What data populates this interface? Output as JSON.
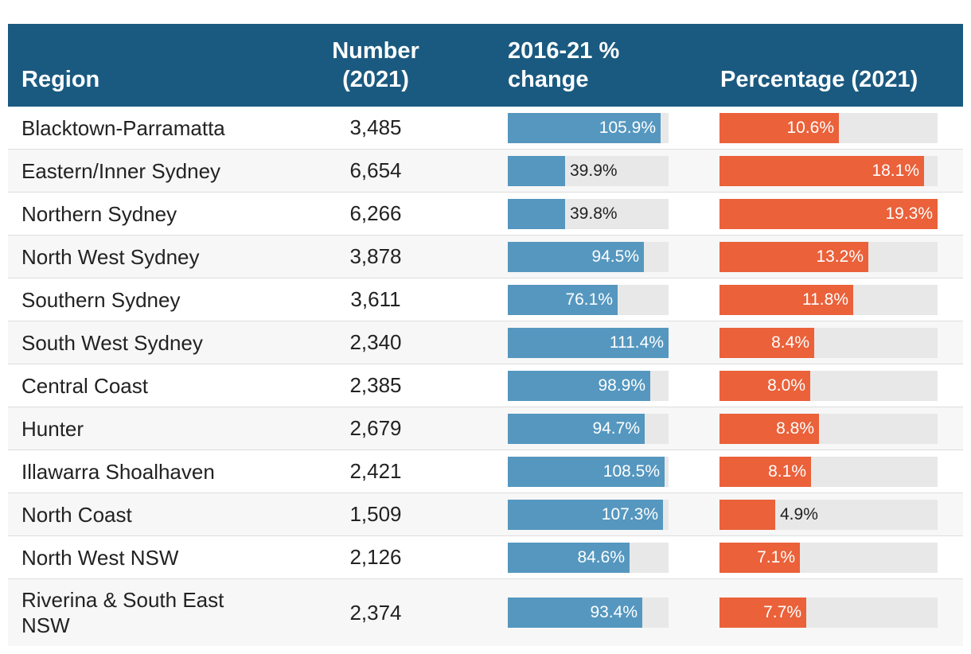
{
  "header": {
    "region": "Region",
    "number": "Number (2021)",
    "change": "2016-21 % change",
    "percentage": "Percentage (2021)"
  },
  "colors": {
    "header_bg": "#1b5a80",
    "change_bar": "#5597bf",
    "percentage_bar": "#ea613a",
    "bar_track": "#e8e8e8"
  },
  "rows": [
    {
      "region": "Blacktown-Parramatta",
      "number": "3,485",
      "change": "105.9%",
      "percentage": "10.6%"
    },
    {
      "region": "Eastern/Inner Sydney",
      "number": "6,654",
      "change": "39.9%",
      "percentage": "18.1%"
    },
    {
      "region": "Northern Sydney",
      "number": "6,266",
      "change": "39.8%",
      "percentage": "19.3%"
    },
    {
      "region": "North West Sydney",
      "number": "3,878",
      "change": "94.5%",
      "percentage": "13.2%"
    },
    {
      "region": "Southern Sydney",
      "number": "3,611",
      "change": "76.1%",
      "percentage": "11.8%"
    },
    {
      "region": "South West Sydney",
      "number": "2,340",
      "change": "111.4%",
      "percentage": "8.4%"
    },
    {
      "region": "Central Coast",
      "number": "2,385",
      "change": "98.9%",
      "percentage": "8.0%"
    },
    {
      "region": "Hunter",
      "number": "2,679",
      "change": "94.7%",
      "percentage": "8.8%"
    },
    {
      "region": "Illawarra Shoalhaven",
      "number": "2,421",
      "change": "108.5%",
      "percentage": "8.1%"
    },
    {
      "region": "North Coast",
      "number": "1,509",
      "change": "107.3%",
      "percentage": "4.9%"
    },
    {
      "region": "North West NSW",
      "number": "2,126",
      "change": "84.6%",
      "percentage": "7.1%"
    },
    {
      "region": "Riverina & South East NSW",
      "number": "2,374",
      "change": "93.4%",
      "percentage": "7.7%"
    }
  ],
  "chart_data": {
    "type": "table",
    "title": "",
    "columns": [
      "Region",
      "Number (2021)",
      "2016-21 % change",
      "Percentage (2021)"
    ],
    "categories": [
      "Blacktown-Parramatta",
      "Eastern/Inner Sydney",
      "Northern Sydney",
      "North West Sydney",
      "Southern Sydney",
      "South West Sydney",
      "Central Coast",
      "Hunter",
      "Illawarra Shoalhaven",
      "North Coast",
      "North West NSW",
      "Riverina & South East NSW"
    ],
    "series": [
      {
        "name": "Number (2021)",
        "values": [
          3485,
          6654,
          6266,
          3878,
          3611,
          2340,
          2385,
          2679,
          2421,
          1509,
          2126,
          2374
        ]
      },
      {
        "name": "2016-21 % change",
        "values": [
          105.9,
          39.9,
          39.8,
          94.5,
          76.1,
          111.4,
          98.9,
          94.7,
          108.5,
          107.3,
          84.6,
          93.4
        ],
        "max": 111.4
      },
      {
        "name": "Percentage (2021)",
        "values": [
          10.6,
          18.1,
          19.3,
          13.2,
          11.8,
          8.4,
          8.0,
          8.8,
          8.1,
          4.9,
          7.1,
          7.7
        ],
        "max": 19.3
      }
    ]
  }
}
